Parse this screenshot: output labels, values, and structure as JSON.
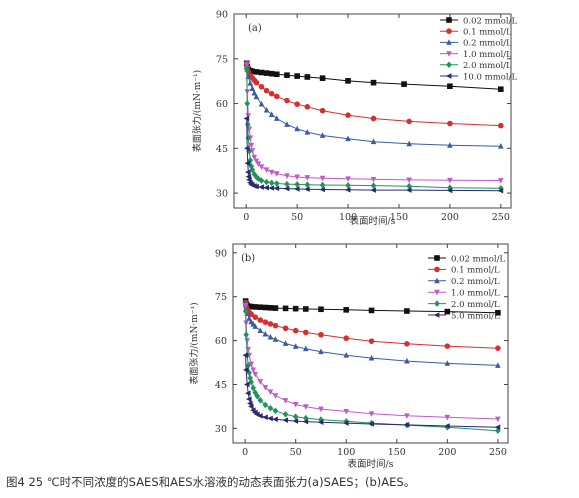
{
  "colors": {
    "c1": "#111111",
    "c2": "#d62f2f",
    "c3": "#3d5aa0",
    "c4": "#c05ac8",
    "c5": "#22935a",
    "c6": "#2a2a6e"
  },
  "caption": "图4 25 ℃时不同浓度的SAES和AES水溶液的动态表面张力(a)SAES；(b)AES。",
  "chart_data": [
    {
      "type": "line",
      "panel_label": "(a)",
      "xlabel": "表面时间/s",
      "ylabel": "表面张力/(mN·m⁻¹)",
      "xlim": [
        -12,
        260
      ],
      "ylim": [
        25,
        90
      ],
      "xticks": [
        0,
        50,
        100,
        150,
        200,
        250
      ],
      "yticks": [
        30,
        45,
        60,
        75,
        90
      ],
      "legend_position": "top-right",
      "series": [
        {
          "name": "0.02 mmol/L",
          "color": "#111111",
          "marker": "square",
          "x": [
            0.5,
            1,
            2,
            4,
            6,
            10,
            15,
            20,
            25,
            30,
            40,
            50,
            60,
            75,
            100,
            125,
            155,
            200,
            250
          ],
          "y": [
            73.5,
            72.4,
            71.5,
            71.0,
            70.8,
            70.6,
            70.4,
            70.2,
            70.0,
            69.8,
            69.5,
            69.2,
            68.9,
            68.5,
            67.6,
            67.0,
            66.5,
            65.8,
            64.8
          ]
        },
        {
          "name": "0.1 mmol/L",
          "color": "#d62f2f",
          "marker": "circle",
          "x": [
            0.5,
            1,
            2,
            4,
            6,
            8,
            10,
            15,
            20,
            25,
            30,
            40,
            50,
            60,
            75,
            100,
            125,
            160,
            200,
            250
          ],
          "y": [
            73.5,
            72.2,
            70.8,
            69.5,
            68.6,
            67.8,
            67.0,
            65.6,
            64.3,
            63.3,
            62.4,
            61.0,
            59.8,
            58.9,
            57.6,
            56.1,
            55.0,
            54.0,
            53.3,
            52.6
          ]
        },
        {
          "name": "0.2 mmol/L",
          "color": "#3d5aa0",
          "marker": "triangle-up",
          "x": [
            0.5,
            1,
            2,
            4,
            6,
            8,
            10,
            15,
            20,
            25,
            30,
            40,
            50,
            60,
            75,
            100,
            125,
            160,
            200,
            250
          ],
          "y": [
            73.5,
            71.5,
            69.0,
            66.8,
            65.0,
            63.5,
            62.3,
            59.8,
            57.8,
            56.3,
            55.0,
            53.0,
            51.5,
            50.4,
            49.3,
            48.2,
            47.2,
            46.5,
            46.0,
            45.7
          ]
        },
        {
          "name": "1.0 mmol/L",
          "color": "#c05ac8",
          "marker": "triangle-down",
          "x": [
            0.5,
            1,
            2,
            3,
            4,
            5,
            6,
            8,
            10,
            12,
            15,
            20,
            25,
            30,
            40,
            50,
            60,
            75,
            100,
            125,
            160,
            200,
            250
          ],
          "y": [
            73.0,
            64.0,
            56.0,
            51.5,
            48.5,
            46.0,
            44.2,
            42.0,
            40.8,
            39.8,
            38.8,
            37.8,
            37.0,
            36.5,
            35.8,
            35.4,
            35.2,
            35.0,
            34.8,
            34.6,
            34.4,
            34.3,
            34.2
          ]
        },
        {
          "name": "2.0 mmol/L",
          "color": "#22935a",
          "marker": "diamond",
          "x": [
            0.5,
            1,
            1.5,
            2,
            3,
            4,
            5,
            6,
            8,
            10,
            12,
            15,
            20,
            25,
            30,
            40,
            50,
            60,
            75,
            100,
            125,
            160,
            200,
            250
          ],
          "y": [
            71.5,
            60.0,
            53.0,
            48.5,
            44.0,
            41.0,
            39.0,
            37.8,
            36.3,
            35.4,
            34.8,
            34.2,
            33.7,
            33.4,
            33.2,
            33.0,
            32.9,
            32.8,
            32.7,
            32.6,
            32.5,
            32.3,
            31.8,
            31.6
          ]
        },
        {
          "name": "10.0 mmol/L",
          "color": "#2a2a6e",
          "marker": "triangle-left",
          "x": [
            0.5,
            1,
            1.5,
            2,
            2.5,
            3,
            4,
            5,
            6,
            8,
            10,
            15,
            20,
            25,
            30,
            40,
            50,
            60,
            75,
            100,
            125,
            160,
            200,
            250
          ],
          "y": [
            55.0,
            45.0,
            40.0,
            37.0,
            35.5,
            34.5,
            33.5,
            33.0,
            32.7,
            32.4,
            32.2,
            32.0,
            31.8,
            31.7,
            31.6,
            31.5,
            31.4,
            31.3,
            31.2,
            31.1,
            31.0,
            31.0,
            30.9,
            30.8
          ]
        }
      ]
    },
    {
      "type": "line",
      "panel_label": "(b)",
      "xlabel": "表面时间/s",
      "ylabel": "表面张力/(mN·m⁻¹)",
      "xlim": [
        -12,
        260
      ],
      "ylim": [
        25,
        93
      ],
      "xticks": [
        0,
        50,
        100,
        150,
        200,
        250
      ],
      "yticks": [
        30,
        45,
        60,
        75,
        90
      ],
      "legend_position": "top-right",
      "series": [
        {
          "name": "0.02 mmol/L",
          "color": "#111111",
          "marker": "square",
          "x": [
            0.5,
            1,
            2,
            4,
            6,
            10,
            15,
            20,
            25,
            30,
            40,
            50,
            60,
            75,
            100,
            125,
            160,
            200,
            250
          ],
          "y": [
            73.5,
            72.5,
            72.0,
            71.7,
            71.6,
            71.5,
            71.4,
            71.3,
            71.2,
            71.1,
            71.0,
            70.9,
            70.8,
            70.7,
            70.5,
            70.3,
            70.1,
            69.9,
            69.5
          ]
        },
        {
          "name": "0.1 mmol/L",
          "color": "#d62f2f",
          "marker": "circle",
          "x": [
            0.5,
            1,
            2,
            4,
            6,
            10,
            15,
            20,
            25,
            30,
            40,
            50,
            60,
            75,
            100,
            125,
            160,
            200,
            250
          ],
          "y": [
            73.0,
            71.5,
            70.5,
            69.7,
            69.0,
            68.0,
            67.0,
            66.3,
            65.7,
            65.1,
            64.2,
            63.4,
            62.8,
            62.0,
            60.8,
            59.8,
            58.9,
            58.1,
            57.4
          ]
        },
        {
          "name": "0.2 mmol/L",
          "color": "#3d5aa0",
          "marker": "triangle-up",
          "x": [
            0.5,
            1,
            2,
            4,
            6,
            8,
            10,
            15,
            20,
            25,
            30,
            40,
            50,
            60,
            75,
            100,
            125,
            160,
            200,
            250
          ],
          "y": [
            73.0,
            71.0,
            69.2,
            67.6,
            66.4,
            65.6,
            64.8,
            63.4,
            62.2,
            61.2,
            60.4,
            59.0,
            58.0,
            57.2,
            56.2,
            55.0,
            54.0,
            53.0,
            52.2,
            51.5
          ]
        },
        {
          "name": "1.0 mmol/L",
          "color": "#c05ac8",
          "marker": "triangle-down",
          "x": [
            0.5,
            1,
            2,
            3,
            4,
            6,
            8,
            10,
            15,
            20,
            25,
            30,
            40,
            50,
            60,
            75,
            100,
            125,
            160,
            200,
            250
          ],
          "y": [
            72.0,
            66.0,
            60.0,
            57.0,
            55.0,
            52.0,
            50.0,
            48.5,
            46.0,
            44.0,
            42.5,
            41.2,
            39.5,
            38.2,
            37.4,
            36.6,
            35.8,
            35.0,
            34.3,
            33.8,
            33.2
          ]
        },
        {
          "name": "2.0 mmol/L",
          "color": "#22935a",
          "marker": "diamond",
          "x": [
            0.5,
            1,
            2,
            3,
            4,
            5,
            6,
            8,
            10,
            12,
            15,
            20,
            25,
            30,
            40,
            50,
            60,
            75,
            100,
            125,
            160,
            200,
            250
          ],
          "y": [
            70.0,
            62.0,
            55.0,
            51.5,
            49.0,
            47.2,
            45.8,
            43.8,
            42.2,
            41.0,
            39.6,
            38.0,
            36.9,
            36.0,
            34.8,
            34.0,
            33.5,
            33.0,
            32.4,
            31.8,
            31.1,
            30.4,
            29.2
          ]
        },
        {
          "name": "5.0 mmol/L",
          "color": "#2a2a6e",
          "marker": "triangle-left",
          "x": [
            0.5,
            1,
            2,
            3,
            4,
            5,
            6,
            8,
            10,
            12,
            15,
            20,
            25,
            30,
            40,
            50,
            60,
            75,
            100,
            125,
            160,
            200,
            250
          ],
          "y": [
            55.0,
            50.0,
            45.0,
            42.0,
            40.0,
            38.5,
            37.5,
            36.2,
            35.4,
            34.8,
            34.3,
            33.8,
            33.4,
            33.1,
            32.8,
            32.5,
            32.3,
            32.1,
            31.8,
            31.5,
            31.2,
            30.8,
            30.4
          ]
        }
      ]
    }
  ]
}
